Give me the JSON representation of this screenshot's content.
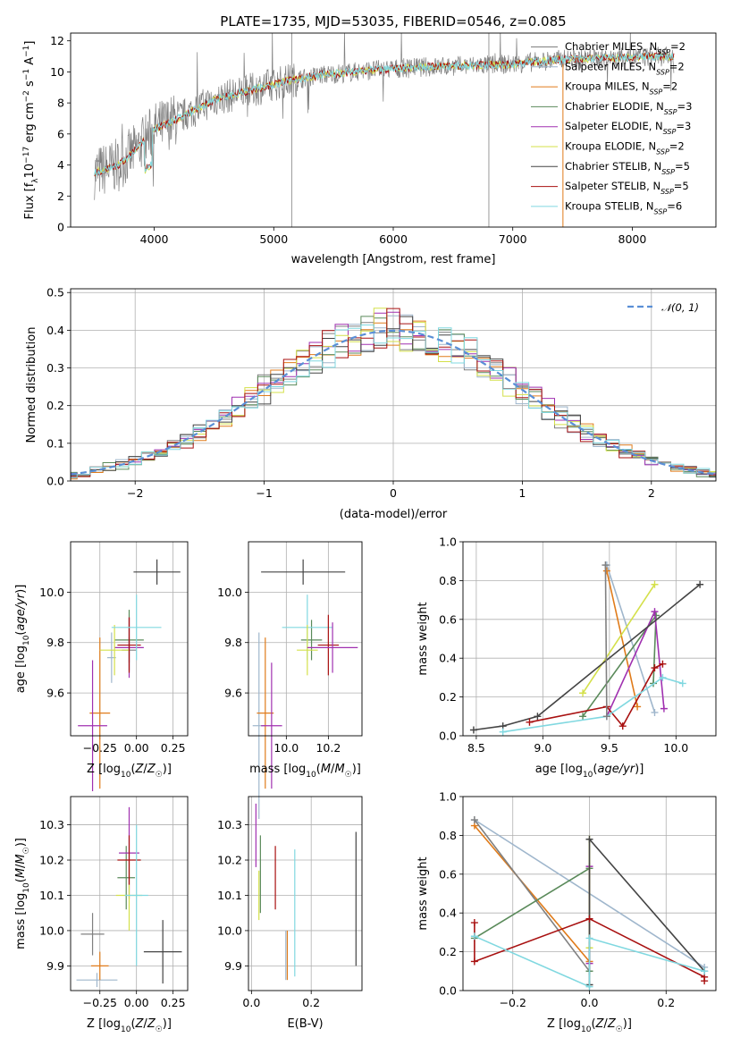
{
  "figure": {
    "title": "PLATE=1735, MJD=53035, FIBERID=0546, z=0.085"
  },
  "models": [
    {
      "name": "Chabrier MILES",
      "nssp": "2",
      "color": "#808080"
    },
    {
      "name": "Salpeter MILES",
      "nssp": "2",
      "color": "#9fb6cc"
    },
    {
      "name": "Kroupa MILES",
      "nssp": "2",
      "color": "#e07b1a"
    },
    {
      "name": "Chabrier ELODIE",
      "nssp": "3",
      "color": "#5a8a5a"
    },
    {
      "name": "Salpeter ELODIE",
      "nssp": "3",
      "color": "#a030b0"
    },
    {
      "name": "Kroupa ELODIE",
      "nssp": "2",
      "color": "#d4e04a"
    },
    {
      "name": "Chabrier STELIB",
      "nssp": "5",
      "color": "#444444"
    },
    {
      "name": "Salpeter STELIB",
      "nssp": "5",
      "color": "#a81010"
    },
    {
      "name": "Kroupa STELIB",
      "nssp": "6",
      "color": "#80d8e0"
    }
  ],
  "chart_data": [
    {
      "id": "spectrum",
      "type": "line",
      "xlabel": "wavelength [Angstrom, rest frame]",
      "ylabel": "Flux [f_λ 10^-17 erg cm^-2 s^-1 A^-1]",
      "xlim": [
        3300,
        8700
      ],
      "ylim": [
        0,
        12.5
      ],
      "xticks": [
        4000,
        5000,
        6000,
        7000,
        8000
      ],
      "yticks": [
        0,
        2,
        4,
        6,
        8,
        10,
        12
      ],
      "grid": false,
      "legend": "upper right",
      "continuum": {
        "x": [
          3500,
          3700,
          3850,
          4000,
          4200,
          4500,
          4800,
          5100,
          5400,
          5800,
          6200,
          6600,
          7000,
          7400,
          7800,
          8300
        ],
        "y": [
          3.5,
          4.0,
          5.0,
          6.3,
          7.0,
          8.2,
          8.8,
          9.4,
          9.8,
          10.1,
          10.3,
          10.4,
          10.5,
          10.8,
          10.9,
          11.0
        ]
      }
    },
    {
      "id": "residual-hist",
      "type": "line",
      "xlabel": "(data-model)/error",
      "ylabel": "Normed distribution",
      "xlim": [
        -2.5,
        2.5
      ],
      "ylim": [
        0,
        0.51
      ],
      "xticks": [
        -2,
        -1,
        0,
        1,
        2
      ],
      "yticks": [
        0.0,
        0.1,
        0.2,
        0.3,
        0.4,
        0.5
      ],
      "grid": true,
      "legend": "upper right",
      "reference_label": "𝒩(0, 1)",
      "bin_width": 0.1
    },
    {
      "id": "age-vs-Z",
      "type": "scatter",
      "xlabel": "Z [log10(Z/Z☉)]",
      "ylabel": "age [log10(age/yr)]",
      "xlim": [
        -0.45,
        0.35
      ],
      "ylim": [
        9.43,
        10.2
      ],
      "xticks": [
        -0.25,
        0.0,
        0.25
      ],
      "yticks": [
        9.6,
        9.8,
        10.0
      ],
      "grid": true,
      "points": [
        {
          "model": 0,
          "x": -0.05,
          "y": 9.77,
          "xerr": 0.05,
          "yerr": 0.05
        },
        {
          "model": 1,
          "x": -0.17,
          "y": 9.74,
          "xerr": 0.03,
          "yerr": 0.1
        },
        {
          "model": 2,
          "x": -0.25,
          "y": 9.52,
          "xerr": 0.07,
          "yerr": 0.3
        },
        {
          "model": 3,
          "x": -0.05,
          "y": 9.81,
          "xerr": 0.1,
          "yerr": 0.12
        },
        {
          "model": 4,
          "x": -0.05,
          "y": 9.78,
          "xerr": 0.1,
          "yerr": 0.12
        },
        {
          "model": 5,
          "x": -0.15,
          "y": 9.77,
          "xerr": 0.1,
          "yerr": 0.1
        },
        {
          "model": 6,
          "x": 0.14,
          "y": 10.08,
          "xerr": 0.16,
          "yerr": 0.05
        },
        {
          "model": 7,
          "x": -0.05,
          "y": 9.79,
          "xerr": 0.08,
          "yerr": 0.11
        },
        {
          "model": 8,
          "x": 0.0,
          "y": 9.86,
          "xerr": 0.17,
          "yerr": 0.13
        },
        {
          "model": 4,
          "x": -0.3,
          "y": 9.47,
          "xerr": 0.1,
          "yerr": 0.26
        }
      ]
    },
    {
      "id": "age-vs-mass",
      "type": "scatter",
      "xlabel": "mass [log10(M/M☉)]",
      "ylabel": "",
      "xlim": [
        9.82,
        10.36
      ],
      "ylim": [
        9.43,
        10.2
      ],
      "xticks": [
        10.0,
        10.2
      ],
      "yticks": [
        9.6,
        9.8,
        10.0
      ],
      "grid": true,
      "points": [
        {
          "model": 1,
          "x": 9.87,
          "y": 9.47,
          "xerr": 0.03,
          "yerr": 0.37
        },
        {
          "model": 2,
          "x": 9.9,
          "y": 9.52,
          "xerr": 0.04,
          "yerr": 0.3
        },
        {
          "model": 4,
          "x": 9.93,
          "y": 9.47,
          "xerr": 0.05,
          "yerr": 0.25
        },
        {
          "model": 6,
          "x": 10.08,
          "y": 10.08,
          "xerr": 0.2,
          "yerr": 0.05
        },
        {
          "model": 3,
          "x": 10.12,
          "y": 9.81,
          "xerr": 0.05,
          "yerr": 0.08
        },
        {
          "model": 8,
          "x": 10.1,
          "y": 9.86,
          "xerr": 0.12,
          "yerr": 0.13
        },
        {
          "model": 5,
          "x": 10.1,
          "y": 9.77,
          "xerr": 0.05,
          "yerr": 0.1
        },
        {
          "model": 7,
          "x": 10.2,
          "y": 9.79,
          "xerr": 0.05,
          "yerr": 0.12
        },
        {
          "model": 4,
          "x": 10.22,
          "y": 9.78,
          "xerr": 0.12,
          "yerr": 0.1
        }
      ]
    },
    {
      "id": "weight-vs-age",
      "type": "line",
      "xlabel": "age [log10(age/yr)]",
      "ylabel": "mass weight",
      "xlim": [
        8.4,
        10.3
      ],
      "ylim": [
        0.0,
        1.0
      ],
      "xticks": [
        8.5,
        9.0,
        9.5,
        10.0
      ],
      "yticks": [
        0.0,
        0.2,
        0.4,
        0.6,
        0.8,
        1.0
      ],
      "grid": true,
      "series": [
        {
          "model": 1,
          "x": [
            9.48,
            9.84
          ],
          "y": [
            0.88,
            0.12
          ]
        },
        {
          "model": 2,
          "x": [
            9.48,
            9.71
          ],
          "y": [
            0.85,
            0.15
          ]
        },
        {
          "model": 3,
          "x": [
            9.3,
            9.85,
            9.83
          ],
          "y": [
            0.1,
            0.62,
            0.27
          ]
        },
        {
          "model": 4,
          "x": [
            9.48,
            9.84,
            9.91
          ],
          "y": [
            0.1,
            0.64,
            0.14
          ]
        },
        {
          "model": 5,
          "x": [
            9.3,
            9.84
          ],
          "y": [
            0.22,
            0.78
          ]
        },
        {
          "model": 6,
          "x": [
            8.48,
            8.7,
            8.96,
            10.18
          ],
          "y": [
            0.03,
            0.05,
            0.1,
            0.78
          ]
        },
        {
          "model": 7,
          "x": [
            8.9,
            9.48,
            9.6,
            9.84,
            9.9
          ],
          "y": [
            0.07,
            0.15,
            0.05,
            0.35,
            0.37
          ]
        },
        {
          "model": 8,
          "x": [
            8.7,
            9.48,
            9.9,
            10.05
          ],
          "y": [
            0.02,
            0.1,
            0.3,
            0.27
          ]
        },
        {
          "model": 0,
          "x": [
            9.47,
            9.48
          ],
          "y": [
            0.88,
            0.1
          ]
        }
      ]
    },
    {
      "id": "mass-vs-Z",
      "type": "scatter",
      "xlabel": "Z [log10(Z/Z☉)]",
      "ylabel": "mass [log10(M/M☉)]",
      "xlim": [
        -0.45,
        0.35
      ],
      "ylim": [
        9.83,
        10.38
      ],
      "xticks": [
        -0.25,
        0.0,
        0.25
      ],
      "yticks": [
        9.9,
        10.0,
        10.1,
        10.2,
        10.3
      ],
      "grid": true,
      "points": [
        {
          "model": 1,
          "x": -0.27,
          "y": 9.86,
          "xerr": 0.14,
          "yerr": 0.02
        },
        {
          "model": 2,
          "x": -0.25,
          "y": 9.9,
          "xerr": 0.06,
          "yerr": 0.04
        },
        {
          "model": 0,
          "x": -0.3,
          "y": 9.99,
          "xerr": 0.08,
          "yerr": 0.06
        },
        {
          "model": 3,
          "x": -0.07,
          "y": 10.15,
          "xerr": 0.06,
          "yerr": 0.09
        },
        {
          "model": 4,
          "x": -0.05,
          "y": 10.22,
          "xerr": 0.07,
          "yerr": 0.13
        },
        {
          "model": 5,
          "x": -0.05,
          "y": 10.1,
          "xerr": 0.09,
          "yerr": 0.1
        },
        {
          "model": 6,
          "x": 0.18,
          "y": 9.94,
          "xerr": 0.13,
          "yerr": 0.09
        },
        {
          "model": 7,
          "x": -0.05,
          "y": 10.2,
          "xerr": 0.08,
          "yerr": 0.07
        },
        {
          "model": 8,
          "x": 0.0,
          "y": 10.1,
          "xerr": 0.08,
          "yerr": 0.2
        }
      ]
    },
    {
      "id": "mass-vs-ebv",
      "type": "scatter",
      "xlabel": "E(B-V)",
      "ylabel": "",
      "xlim": [
        -0.01,
        0.37
      ],
      "ylim": [
        9.83,
        10.38
      ],
      "xticks": [
        0.0,
        0.2
      ],
      "yticks": [
        9.9,
        10.0,
        10.1,
        10.2,
        10.3
      ],
      "grid": true,
      "points": [
        {
          "model": 4,
          "x": 0.015,
          "y": 10.27,
          "yerr": 0.09
        },
        {
          "model": 5,
          "x": 0.025,
          "y": 10.1,
          "yerr": 0.07
        },
        {
          "model": 3,
          "x": 0.03,
          "y": 10.16,
          "yerr": 0.11
        },
        {
          "model": 7,
          "x": 0.08,
          "y": 10.15,
          "yerr": 0.09
        },
        {
          "model": 2,
          "x": 0.12,
          "y": 9.93,
          "yerr": 0.07
        },
        {
          "model": 1,
          "x": 0.115,
          "y": 9.93,
          "yerr": 0.07
        },
        {
          "model": 8,
          "x": 0.145,
          "y": 10.05,
          "yerr": 0.18
        },
        {
          "model": 6,
          "x": 0.35,
          "y": 10.09,
          "yerr": 0.19
        }
      ]
    },
    {
      "id": "weight-vs-Z",
      "type": "line",
      "xlabel": "Z [log10(Z/Z☉)]",
      "ylabel": "mass weight",
      "xlim": [
        -0.33,
        0.33
      ],
      "ylim": [
        0.0,
        1.0
      ],
      "xticks": [
        -0.2,
        0.0,
        0.2
      ],
      "yticks": [
        0.0,
        0.2,
        0.4,
        0.6,
        0.8,
        1.0
      ],
      "grid": true,
      "series": [
        {
          "model": 1,
          "x": [
            -0.3,
            0.3
          ],
          "y": [
            0.88,
            0.12
          ]
        },
        {
          "model": 2,
          "x": [
            -0.3,
            0.0
          ],
          "y": [
            0.85,
            0.15
          ]
        },
        {
          "model": 0,
          "x": [
            -0.3,
            0.0
          ],
          "y": [
            0.88,
            0.1
          ]
        },
        {
          "model": 3,
          "x": [
            -0.3,
            0.0,
            0.0
          ],
          "y": [
            0.27,
            0.63,
            0.1
          ]
        },
        {
          "model": 4,
          "x": [
            0.0,
            0.0
          ],
          "y": [
            0.64,
            0.14
          ]
        },
        {
          "model": 5,
          "x": [
            0.0,
            0.0
          ],
          "y": [
            0.22,
            0.78
          ]
        },
        {
          "model": 6,
          "x": [
            0.0,
            0.0,
            0.3
          ],
          "y": [
            0.03,
            0.78,
            0.1
          ]
        },
        {
          "model": 7,
          "x": [
            -0.3,
            -0.3,
            0.0,
            0.3,
            0.3
          ],
          "y": [
            0.35,
            0.15,
            0.37,
            0.07,
            0.05
          ]
        },
        {
          "model": 8,
          "x": [
            -0.3,
            0.0,
            0.0,
            0.3
          ],
          "y": [
            0.28,
            0.02,
            0.27,
            0.1
          ]
        }
      ]
    }
  ]
}
